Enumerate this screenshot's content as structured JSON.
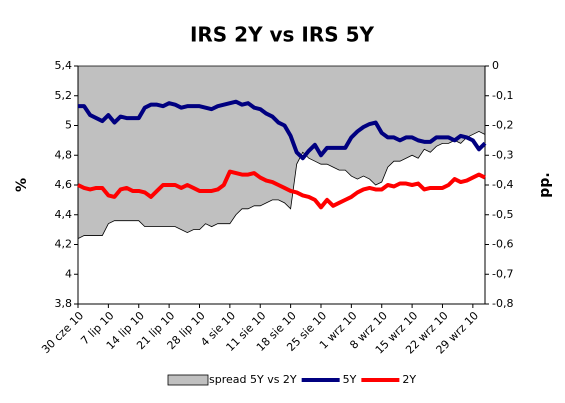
{
  "chart_data": {
    "type": "line",
    "title": "IRS 2Y vs IRS 5Y",
    "ylabel": "%",
    "y2label": "pp.",
    "legend": "bottom",
    "categories": [
      "30 cze 10",
      null,
      null,
      null,
      null,
      "7 lip 10",
      null,
      null,
      null,
      null,
      "14 lip 10",
      null,
      null,
      null,
      null,
      "21 lip 10",
      null,
      null,
      null,
      null,
      "28 lip 10",
      null,
      null,
      null,
      null,
      "4 sie 10",
      null,
      null,
      null,
      null,
      "11 sie 10",
      null,
      null,
      null,
      null,
      "18 sie 10",
      null,
      null,
      null,
      null,
      "25 sie 10",
      null,
      null,
      null,
      null,
      "1 wrz 10",
      null,
      null,
      null,
      null,
      "8 wrz 10",
      null,
      null,
      null,
      null,
      "15 wrz 10",
      null,
      null,
      null,
      null,
      "22 wrz 10",
      null,
      null,
      null,
      null,
      "29 wrz 10",
      null,
      null
    ],
    "ylim": [
      3.8,
      5.4
    ],
    "yticks": [
      {
        "value": 3.8,
        "label": "3,8"
      },
      {
        "value": 4,
        "label": "4"
      },
      {
        "value": 4.2,
        "label": "4,2"
      },
      {
        "value": 4.4,
        "label": "4,4"
      },
      {
        "value": 4.6,
        "label": "4,6"
      },
      {
        "value": 4.8,
        "label": "4,8"
      },
      {
        "value": 5,
        "label": "5"
      },
      {
        "value": 5.2,
        "label": "5,2"
      },
      {
        "value": 5.4,
        "label": "5,4"
      }
    ],
    "y2lim": [
      -0.8,
      0
    ],
    "y2ticks": [
      {
        "value": -0.8,
        "label": "-0,8"
      },
      {
        "value": -0.7,
        "label": "-0,7"
      },
      {
        "value": -0.6,
        "label": "-0,6"
      },
      {
        "value": -0.5,
        "label": "-0,5"
      },
      {
        "value": -0.4,
        "label": "-0,4"
      },
      {
        "value": -0.3,
        "label": "-0,3"
      },
      {
        "value": -0.2,
        "label": "-0,2"
      },
      {
        "value": -0.1,
        "label": "-0,1"
      },
      0
    ],
    "series": [
      {
        "name": "spread 5Y vs 2Y",
        "type": "area",
        "axis": "y2",
        "color": "#c0c0c0",
        "values": [
          -0.58,
          -0.57,
          -0.57,
          -0.57,
          -0.57,
          -0.53,
          -0.52,
          -0.52,
          -0.52,
          -0.52,
          -0.52,
          -0.54,
          -0.54,
          -0.54,
          -0.54,
          -0.54,
          -0.54,
          -0.55,
          -0.56,
          -0.55,
          -0.55,
          -0.53,
          -0.54,
          -0.53,
          -0.53,
          -0.53,
          -0.5,
          -0.48,
          -0.48,
          -0.47,
          -0.47,
          -0.46,
          -0.45,
          -0.45,
          -0.46,
          -0.48,
          -0.33,
          -0.29,
          -0.31,
          -0.32,
          -0.33,
          -0.33,
          -0.34,
          -0.35,
          -0.35,
          -0.37,
          -0.38,
          -0.37,
          -0.38,
          -0.4,
          -0.39,
          -0.34,
          -0.32,
          -0.32,
          -0.31,
          -0.3,
          -0.31,
          -0.28,
          -0.29,
          -0.27,
          -0.26,
          -0.26,
          -0.25,
          -0.26,
          -0.24,
          -0.23,
          -0.22,
          -0.23
        ]
      },
      {
        "name": "5Y",
        "color": "#000080",
        "values": [
          5.13,
          5.13,
          5.07,
          5.05,
          5.03,
          5.07,
          5.02,
          5.06,
          5.05,
          5.05,
          5.05,
          5.12,
          5.14,
          5.14,
          5.13,
          5.15,
          5.14,
          5.12,
          5.13,
          5.13,
          5.13,
          5.12,
          5.11,
          5.13,
          5.14,
          5.15,
          5.16,
          5.14,
          5.15,
          5.12,
          5.11,
          5.08,
          5.06,
          5.02,
          5.0,
          4.93,
          4.82,
          4.78,
          4.83,
          4.87,
          4.8,
          4.85,
          4.85,
          4.85,
          4.85,
          4.92,
          4.96,
          4.99,
          5.01,
          5.02,
          4.95,
          4.92,
          4.92,
          4.9,
          4.92,
          4.92,
          4.9,
          4.89,
          4.89,
          4.92,
          4.92,
          4.92,
          4.9,
          4.93,
          4.92,
          4.9,
          4.84,
          4.88
        ]
      },
      {
        "name": "2Y",
        "color": "#ff0000",
        "values": [
          4.6,
          4.58,
          4.57,
          4.58,
          4.58,
          4.53,
          4.52,
          4.57,
          4.58,
          4.56,
          4.56,
          4.55,
          4.52,
          4.56,
          4.6,
          4.6,
          4.6,
          4.58,
          4.6,
          4.58,
          4.56,
          4.56,
          4.56,
          4.57,
          4.6,
          4.69,
          4.68,
          4.67,
          4.67,
          4.68,
          4.65,
          4.63,
          4.62,
          4.6,
          4.58,
          4.56,
          4.55,
          4.53,
          4.52,
          4.5,
          4.45,
          4.5,
          4.46,
          4.48,
          4.5,
          4.52,
          4.55,
          4.57,
          4.58,
          4.57,
          4.57,
          4.6,
          4.59,
          4.61,
          4.61,
          4.6,
          4.61,
          4.57,
          4.58,
          4.58,
          4.58,
          4.6,
          4.64,
          4.62,
          4.63,
          4.65,
          4.67,
          4.65
        ]
      }
    ]
  }
}
